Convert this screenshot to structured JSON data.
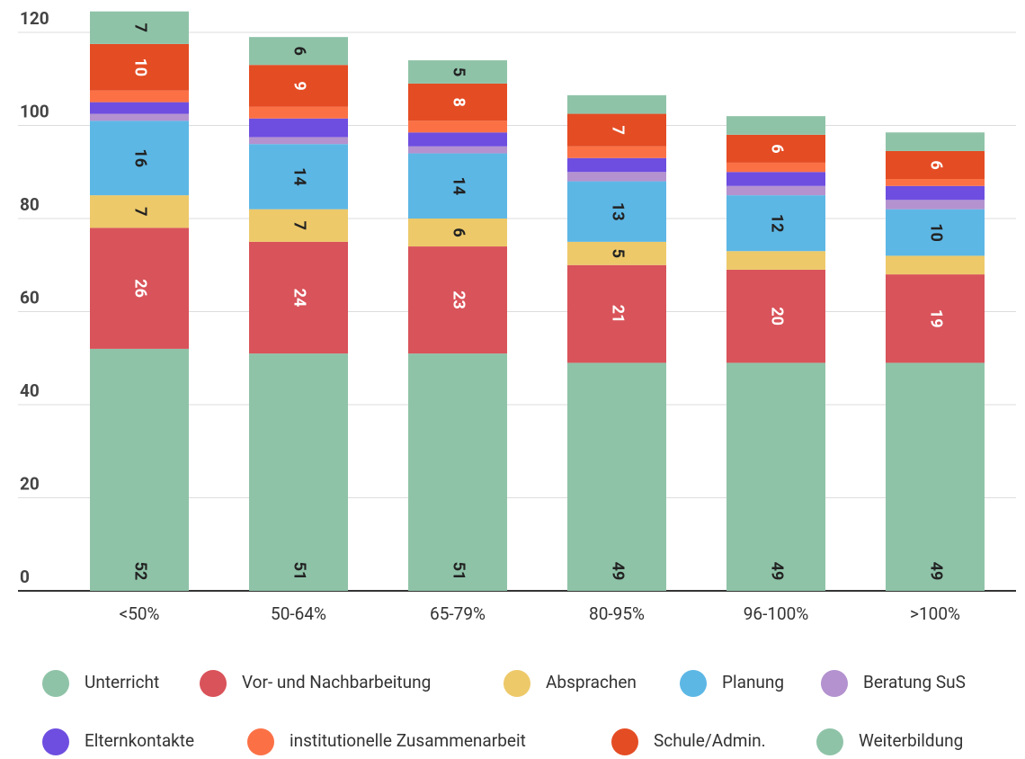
{
  "chart_data": {
    "type": "stacked_bar",
    "categories": [
      "<50%",
      "50-64%",
      "65-79%",
      "80-95%",
      "96-100%",
      ">100%"
    ],
    "ylim": [
      0,
      120
    ],
    "yticks": [
      0,
      20,
      40,
      60,
      80,
      100,
      120
    ],
    "grid": true,
    "series": [
      {
        "name": "Unterricht",
        "color": "#8fc3a8",
        "values": [
          52,
          51,
          51,
          49,
          49,
          49
        ],
        "value_labels": [
          "52",
          "51",
          "51",
          "49",
          "49",
          "49"
        ]
      },
      {
        "name": "Vor- und Nachbarbeitung",
        "color": "#d9535a",
        "values": [
          26,
          24,
          23,
          21,
          20,
          19
        ],
        "value_labels": [
          "26",
          "24",
          "23",
          "21",
          "20",
          "19"
        ]
      },
      {
        "name": "Absprachen",
        "color": "#edc96a",
        "values": [
          7,
          7,
          6,
          5,
          4,
          4
        ],
        "value_labels": [
          "7",
          "7",
          "6",
          "5",
          null,
          null
        ]
      },
      {
        "name": "Planung",
        "color": "#5db7e5",
        "values": [
          16,
          14,
          14,
          13,
          12,
          10
        ],
        "value_labels": [
          "16",
          "14",
          "14",
          "13",
          "12",
          "10"
        ]
      },
      {
        "name": "Beratung SuS",
        "color": "#b392cf",
        "values": [
          1.5,
          1.5,
          1.5,
          2,
          2,
          2
        ],
        "value_labels": [
          null,
          null,
          null,
          null,
          null,
          null
        ]
      },
      {
        "name": "Elternkontakte",
        "color": "#6e4ee0",
        "values": [
          2.5,
          4,
          3,
          3,
          3,
          3
        ],
        "value_labels": [
          null,
          null,
          null,
          null,
          null,
          null
        ]
      },
      {
        "name": "institutionelle Zusammenarbeit",
        "color": "#fb7145",
        "values": [
          2.5,
          2.5,
          2.5,
          2.5,
          2,
          1.5
        ],
        "value_labels": [
          null,
          null,
          null,
          null,
          null,
          null
        ]
      },
      {
        "name": "Schule/Admin.",
        "color": "#e44c24",
        "values": [
          10,
          9,
          8,
          7,
          6,
          6
        ],
        "value_labels": [
          "10",
          "9",
          "8",
          "7",
          "6",
          "6"
        ]
      },
      {
        "name": "Weiterbildung",
        "color": "#8fc3a8",
        "values": [
          7,
          6,
          5,
          4,
          4,
          4
        ],
        "value_labels": [
          "7",
          "6",
          "5",
          null,
          null,
          null
        ]
      }
    ]
  }
}
